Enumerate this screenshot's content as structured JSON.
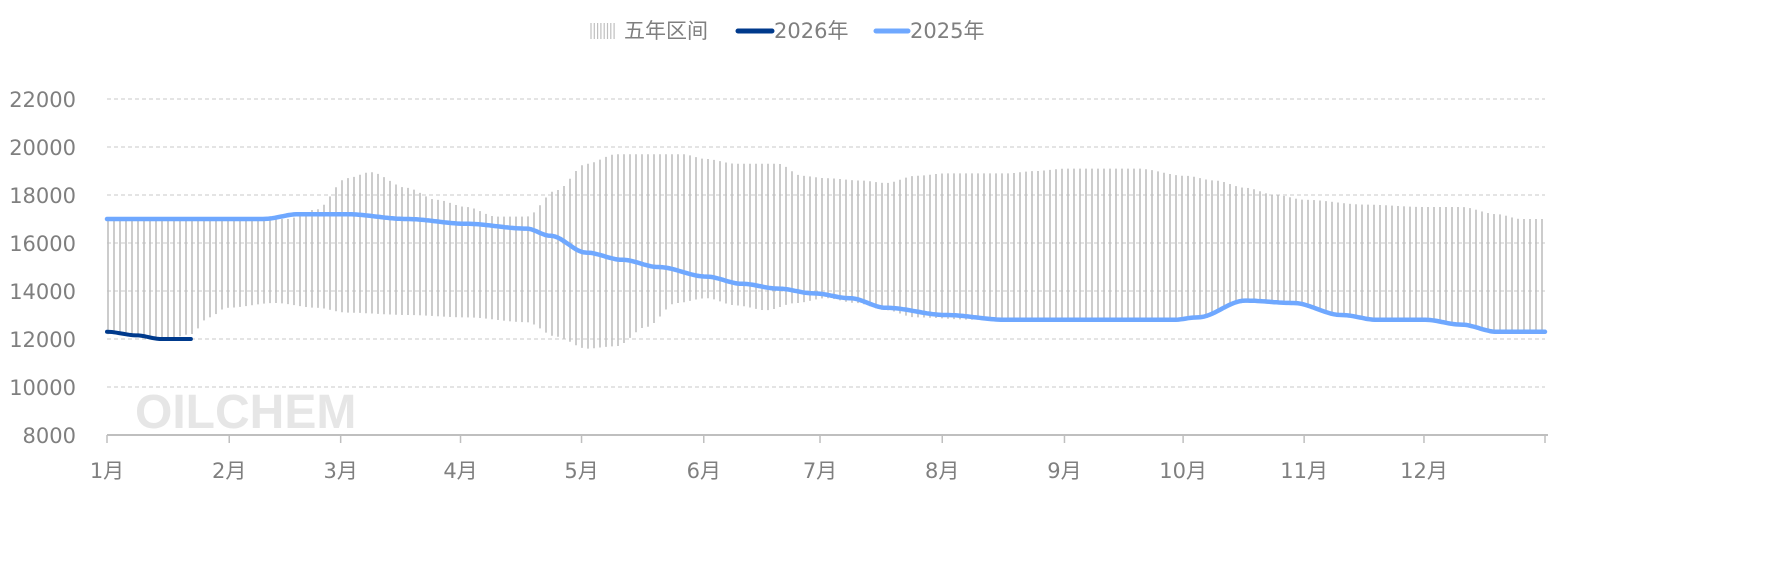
{
  "chart_data": {
    "type": "line",
    "title": "",
    "xlabel": "",
    "ylabel": "",
    "ylim": [
      8000,
      22000
    ],
    "yticks": [
      8000,
      10000,
      12000,
      14000,
      16000,
      18000,
      20000,
      22000
    ],
    "xlim": [
      1,
      13
    ],
    "x_unit": "month position (1 = start of 1月, 13 = end of 12月)",
    "categories": [
      "1月",
      "2月",
      "3月",
      "4月",
      "5月",
      "6月",
      "7月",
      "8月",
      "9月",
      "10月",
      "11月",
      "12月"
    ],
    "grid": "horizontal dashed",
    "legend": {
      "placement": "top-center",
      "entries": [
        "五年区间",
        "2026年",
        "2025年"
      ]
    },
    "watermark": "OILCHEM",
    "colors": {
      "range": "#bfbfbf",
      "s2026": "#003a8c",
      "s2025": "#6fa8ff",
      "axis": "#bfbfbf",
      "text": "#7f7f7f"
    },
    "range": {
      "name": "五年区间",
      "upper": [
        [
          1,
          17000
        ],
        [
          2,
          17000
        ],
        [
          2.5,
          17000
        ],
        [
          2.75,
          17400
        ],
        [
          3,
          18700
        ],
        [
          3.2,
          18950
        ],
        [
          3.5,
          18300
        ],
        [
          3.75,
          17800
        ],
        [
          4,
          17500
        ],
        [
          4.25,
          17100
        ],
        [
          4.5,
          17100
        ],
        [
          4.75,
          18200
        ],
        [
          5,
          19300
        ],
        [
          5.25,
          19700
        ],
        [
          5.5,
          19700
        ],
        [
          5.8,
          19700
        ],
        [
          6,
          19500
        ],
        [
          6.25,
          19300
        ],
        [
          6.6,
          19300
        ],
        [
          6.8,
          18800
        ],
        [
          7,
          18700
        ],
        [
          7.3,
          18600
        ],
        [
          7.5,
          18500
        ],
        [
          7.75,
          18800
        ],
        [
          8,
          18900
        ],
        [
          8.5,
          18900
        ],
        [
          8.75,
          19000
        ],
        [
          9,
          19100
        ],
        [
          9.6,
          19100
        ],
        [
          10,
          18800
        ],
        [
          10.25,
          18600
        ],
        [
          10.5,
          18300
        ],
        [
          10.75,
          18000
        ],
        [
          11,
          17800
        ],
        [
          11.5,
          17600
        ],
        [
          12,
          17500
        ],
        [
          12.3,
          17500
        ],
        [
          12.6,
          17200
        ],
        [
          12.8,
          17000
        ],
        [
          13,
          17000
        ]
      ],
      "lower": [
        [
          1,
          12200
        ],
        [
          1.5,
          12000
        ],
        [
          1.7,
          12200
        ],
        [
          1.85,
          12900
        ],
        [
          2,
          13300
        ],
        [
          2.4,
          13500
        ],
        [
          2.75,
          13300
        ],
        [
          3,
          13100
        ],
        [
          3.5,
          13000
        ],
        [
          4,
          12900
        ],
        [
          4.5,
          12700
        ],
        [
          4.75,
          12100
        ],
        [
          5,
          11600
        ],
        [
          5.25,
          11700
        ],
        [
          5.5,
          12500
        ],
        [
          5.75,
          13500
        ],
        [
          6,
          13700
        ],
        [
          6.25,
          13400
        ],
        [
          6.5,
          13200
        ],
        [
          6.75,
          13500
        ],
        [
          7,
          13700
        ],
        [
          7.25,
          13500
        ],
        [
          7.5,
          13200
        ],
        [
          7.75,
          12900
        ],
        [
          8.25,
          12800
        ],
        [
          9,
          12800
        ],
        [
          9.9,
          12800
        ],
        [
          10.1,
          12900
        ],
        [
          10.5,
          13600
        ],
        [
          10.9,
          13500
        ],
        [
          11.3,
          13000
        ],
        [
          11.6,
          12800
        ],
        [
          12,
          12800
        ],
        [
          12.3,
          12600
        ],
        [
          12.6,
          12300
        ],
        [
          13,
          12300
        ]
      ]
    },
    "series": [
      {
        "name": "2026年",
        "points": [
          [
            1,
            12300
          ],
          [
            1.25,
            12150
          ],
          [
            1.45,
            12000
          ],
          [
            1.7,
            12000
          ]
        ]
      },
      {
        "name": "2025年",
        "points": [
          [
            1,
            17000
          ],
          [
            2,
            17000
          ],
          [
            2.3,
            17000
          ],
          [
            2.6,
            17200
          ],
          [
            3,
            17200
          ],
          [
            3.5,
            17000
          ],
          [
            4,
            16800
          ],
          [
            4.5,
            16600
          ],
          [
            4.7,
            16300
          ],
          [
            5,
            15600
          ],
          [
            5.3,
            15300
          ],
          [
            5.6,
            15000
          ],
          [
            6,
            14600
          ],
          [
            6.3,
            14300
          ],
          [
            6.6,
            14100
          ],
          [
            6.9,
            13900
          ],
          [
            7.2,
            13700
          ],
          [
            7.5,
            13300
          ],
          [
            8,
            13000
          ],
          [
            8.5,
            12800
          ],
          [
            9,
            12800
          ],
          [
            9.5,
            12800
          ],
          [
            9.9,
            12800
          ],
          [
            10.1,
            12900
          ],
          [
            10.5,
            13600
          ],
          [
            10.9,
            13500
          ],
          [
            11.3,
            13000
          ],
          [
            11.6,
            12800
          ],
          [
            12,
            12800
          ],
          [
            12.3,
            12600
          ],
          [
            12.6,
            12300
          ],
          [
            13,
            12300
          ]
        ]
      }
    ]
  }
}
